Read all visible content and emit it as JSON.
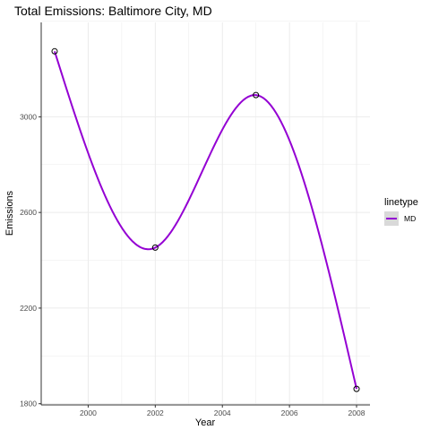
{
  "chart_data": {
    "type": "line",
    "title": "Total Emissions: Baltimore City, MD",
    "xlabel": "Year",
    "ylabel": "Emissions",
    "x": [
      1999,
      2002,
      2005,
      2008
    ],
    "series": [
      {
        "name": "MD",
        "values": [
          3274,
          2453,
          3091,
          1862
        ]
      }
    ],
    "xlim": [
      1998.6,
      2008.4
    ],
    "ylim": [
      1795,
      3395
    ],
    "xticks": [
      2000,
      2002,
      2004,
      2006,
      2008
    ],
    "yticks": [
      1800,
      2200,
      2600,
      3000
    ],
    "smoothed": true,
    "markers": "open-circle",
    "grid": true,
    "legend": {
      "title": "linetype",
      "position": "right",
      "entries": [
        "MD"
      ]
    },
    "colors": {
      "line": "#9400D3",
      "marker": "#000000",
      "grid": "#ebebeb",
      "legend_key_bg": "#d9d9d9"
    }
  }
}
